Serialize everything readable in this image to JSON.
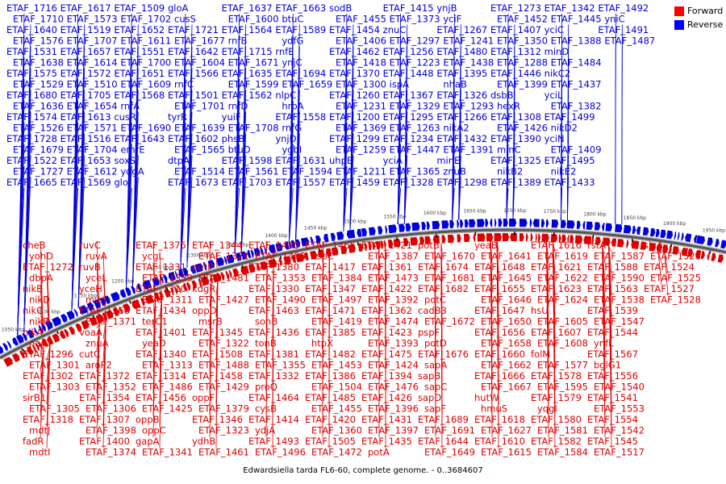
{
  "caption": "Edwardsiella tarda FL6-60, complete genome. - 0..3684607",
  "legend": [
    {
      "label": "Forward",
      "color": "#ff0000"
    },
    {
      "label": "Reverse",
      "color": "#0000ff"
    }
  ],
  "colors": {
    "forward": "#dd0000",
    "reverse": "#0000dd",
    "backbone": "#888888"
  },
  "kbp_ticks": [
    "1050 kbp",
    "1100 kbp",
    "1150 kbp",
    "1200 kbp",
    "1250 kbp",
    "1300 kbp",
    "1350 kbp",
    "1400 kbp",
    "1450 kbp",
    "1500 kbp",
    "1550 kbp",
    "1600 kbp",
    "1650 kbp",
    "1700 kbp",
    "1750 kbp",
    "1800 kbp",
    "1850 kbp",
    "1900 kbp",
    "1950 kbp"
  ],
  "reverse_labels": [
    "ETAF_1716",
    "ETAF_1710",
    "ETAF_1640",
    "ETAF_1576",
    "ETAF_1531",
    "ETAF_1638",
    "ETAF_1575",
    "ETAF_1529",
    "ETAF_1680",
    "ETAF_1636",
    "ETAF_1574",
    "ETAF_1526",
    "ETAF_1728",
    "ETAF_1679",
    "ETAF_1522",
    "ETAF_1727",
    "ETAF_1665",
    "ETAF_1617",
    "ETAF_1573",
    "ETAF_1519",
    "ETAF_1707",
    "ETAF_1657",
    "ETAF_1614",
    "ETAF_1572",
    "ETAF_1510",
    "ETAF_1705",
    "ETAF_1654",
    "ETAF_1613",
    "ETAF_1571",
    "ETAF_1516",
    "ETAF_1704",
    "ETAF_1653",
    "ETAF_1612",
    "ETAF_1569",
    "ETAF_1509",
    "ETAF_1702",
    "ETAF_1652",
    "ETAF_1611",
    "ETAF_1551",
    "ETAF_1700",
    "ETAF_1651",
    "ETAF_1609",
    "ETAF_1568",
    "rnfA",
    "cusR",
    "ETAF_1690",
    "ETAF_1643",
    "emrE",
    "soxS",
    "ydgA",
    "glo",
    "gloA",
    "cusS",
    "ETAF_1721",
    "ETAF_1677",
    "ETAF_1642",
    "ETAF_1604",
    "ETAF_1566",
    "rnfC",
    "ETAF_1501",
    "ETAF_1701",
    "tyrR",
    "ETAF_1639",
    "ETAF_1602",
    "ETAF_1565",
    "dtpA",
    "ETAF_1514",
    "ETAF_1673",
    "ETAF_1637",
    "ETAF_1600",
    "ETAF_1564",
    "rnfB",
    "ETAF_1715",
    "ETAF_1671",
    "ETAF_1635",
    "ETAF_1599",
    "ETAF_1562",
    "rnfD",
    "yuiF",
    "ETAF_1708",
    "phsB",
    "btuD",
    "ETAF_1598",
    "ETAF_1561",
    "ETAF_1703",
    "ETAF_1663",
    "btuC",
    "ETAF_1589",
    "ydfG",
    "rnfE",
    "ynjC",
    "ETAF_1694",
    "ETAF_1659",
    "nlpC",
    "hrpA",
    "ETAF_1558",
    "rnfG",
    "ynjD",
    "ygbI",
    "ETAF_1631",
    "ETAF_1594",
    "ETAF_1557",
    "sodB",
    "ETAF_1455",
    "ETAF_1454",
    "ETAF_1406",
    "ETAF_1462",
    "ETAF_1418",
    "ETAF_1370",
    "ETAF_1300",
    "ETAF_1260",
    "ETAF_1231",
    "ETAF_1200",
    "ETAF_1369",
    "ETAF_1299",
    "ETAF_1259",
    "uhpB",
    "ETAF_1211",
    "ETAF_1459",
    "ETAF_1415",
    "ETAF_1373",
    "znuC",
    "ETAF_1297",
    "ETAF_1256",
    "ETAF_1223",
    "ETAF_1448",
    "ispA",
    "ETAF_1367",
    "ETAF_1329",
    "ETAF_1295",
    "ETAF_1263",
    "ETAF_1234",
    "ETAF_1447",
    "yciA",
    "ETAF_1365",
    "ETAF_1328",
    "ynjB",
    "yciF",
    "ETAF_1267",
    "ETAF_1241",
    "ETAF_1480",
    "ETAF_1438",
    "ETAF_1395",
    "nhaB",
    "ETAF_1326",
    "ETAF_1293",
    "ETAF_1266",
    "nikA2",
    "ETAF_1432",
    "ETAF_1391",
    "minE",
    "znuB",
    "ETAF_1298",
    "ETAF_1273",
    "ETAF_1452",
    "ETAF_1407",
    "ETAF_1350",
    "ETAF_1312",
    "ETAF_1288",
    "ETAF_1446",
    "ETAF_1399",
    "dsbB",
    "hexR",
    "ETAF_1308",
    "ETAF_1426",
    "ETAF_1390",
    "minC",
    "ETAF_1325",
    "nikB2",
    "ETAF_1389",
    "ETAF_1342",
    "ETAF_1445",
    "yciC",
    "ETAF_1388",
    "minD",
    "ETAF_1484",
    "nikC2",
    "ETAF_1437",
    "yciL",
    "ETAF_1382",
    "ETAF_1499",
    "nikD2",
    "yciN",
    "ETAF_1409",
    "ETAF_1495",
    "nikE2",
    "ETAF_1433",
    "ETAF_1492",
    "yniC",
    "ETAF_1491",
    "ETAF_1487"
  ],
  "forward_labels": [
    "cheB",
    "yohD",
    "ETAF_1272",
    "dbpA",
    "nikE",
    "nikD",
    "nikC",
    "nikB",
    "nikA",
    "nanT",
    "ETAF_1296",
    "ETAF_1301",
    "ETAF_1302",
    "ETAF_1303",
    "sirB1",
    "ETAF_1305",
    "ETAF_1318",
    "mdtJ",
    "fadR",
    "mdtI",
    "ruvC",
    "ruvA",
    "ruvB",
    "yceL",
    "yceH",
    "murJ",
    "ETAF_1368",
    "ETAF_1371",
    "voaA",
    "znuA",
    "cutC",
    "aroP2",
    "ETAF_1372",
    "ETAF_1352",
    "ETAF_1354",
    "ETAF_1306",
    "ETAF_1307",
    "ETAF_1398",
    "ETAF_1400",
    "ETAF_1374",
    "ETAF_1375",
    "ycgL",
    "ETAF_1331",
    "ETAF_1339",
    "ETAF_1310",
    "ETAF_1311",
    "ETAF_1434",
    "terC1",
    "ETAF_1401",
    "yeaD",
    "ETAF_1340",
    "ETAF_1313",
    "ETAF_1314",
    "ETAF_1486",
    "ETAF_1456",
    "ETAF_1425",
    "oppB",
    "oppC",
    "gapA",
    "ETAF_1341",
    "ETAF_1344",
    "ETAF_1321",
    "putP",
    "ETAF_1481",
    "kdgR",
    "ETAF_1427",
    "oppD",
    "msrB",
    "ETAF_1345",
    "ETAF_1322",
    "ETAF_1508",
    "ETAF_1488",
    "ETAF_1458",
    "ETAF_1429",
    "oppF",
    "ETAF_1379",
    "ETAF_1346",
    "ETAF_1323",
    "ydhB",
    "ETAF_1461",
    "ETAF_1430",
    "ETAF_1408",
    "ETAF_1380",
    "ETAF_1353",
    "ETAF_1330",
    "ETAF_1490",
    "ETAF_1463",
    "sohB",
    "ETAF_1436",
    "tonB",
    "ETAF_1381",
    "ETAF_1355",
    "ETAF_1332",
    "proQ",
    "ETAF_1464",
    "cysB",
    "ETAF_1414",
    "ydjA",
    "ETAF_1493",
    "ETAF_1496",
    "ETAF_1465",
    "cspC",
    "ETAF_1417",
    "ETAF_1384",
    "ETAF_1347",
    "ETAF_1497",
    "ETAF_1471",
    "ETAF_1419",
    "ETAF_1385",
    "htpX",
    "ETAF_1482",
    "ETAF_1453",
    "ETAF_1386",
    "ETAF_1504",
    "ETAF_1485",
    "ETAF_1455",
    "ETAF_1420",
    "ETAF_1360",
    "ETAF_1505",
    "ETAF_1472",
    "ETAF_1421",
    "ETAF_1387",
    "ETAF_1361",
    "ETAF_1473",
    "ETAF_1422",
    "ETAF_1392",
    "ETAF_1362",
    "ETAF_1474",
    "ETAF_1423",
    "ETAF_1393",
    "ETAF_1475",
    "ETAF_1424",
    "ETAF_1394",
    "ETAF_1476",
    "ETAF_1426",
    "ETAF_1396",
    "ETAF_1431",
    "ETAF_1397",
    "ETAF_1435",
    "potA",
    "potB",
    "ETAF_1670",
    "ETAF_1674",
    "ETAF_1681",
    "ETAF_1682",
    "potC",
    "cadB3",
    "ETAF_1672",
    "pspF",
    "potD",
    "ETAF_1676",
    "sapA",
    "sapB",
    "sapC",
    "sapD",
    "sapF",
    "ETAF_1689",
    "ETAF_1691",
    "ETAF_1644",
    "ETAF_1649",
    "yeaB",
    "ETAF_1641",
    "ETAF_1648",
    "ETAF_1645",
    "ETAF_1655",
    "ETAF_1646",
    "ETAF_1647",
    "ETAF_1650",
    "ETAF_1656",
    "ETAF_1658",
    "ETAF_1660",
    "ETAF_1662",
    "ETAF_1666",
    "ETAF_1667",
    "hutW",
    "hmuS",
    "ETAF_1618",
    "ETAF_1627",
    "ETAF_1610",
    "ETAF_1615",
    "ETAF_1616",
    "ETAF_1619",
    "ETAF_1621",
    "ETAF_1622",
    "ETAF_1623",
    "ETAF_1624",
    "hsU",
    "ETAF_1605",
    "ETAF_1607",
    "ETAF_1608",
    "folM",
    "ETAF_1577",
    "ETAF_1578",
    "ETAF_1595",
    "ETAF_1579",
    "yqgI",
    "ETAF_1580",
    "ETAF_1581",
    "ETAF_1582",
    "ETAF_1584",
    "rstA",
    "ETAF_1587",
    "ETAF_1588",
    "ETAF_1590",
    "ETAF_1563",
    "ETAF_1538",
    "ETAF_1539",
    "ETAF_1547",
    "ETAF_1544",
    "ynfL",
    "ETAF_1567",
    "bglG1",
    "ETAF_1556",
    "ETAF_1540",
    "ETAF_1541",
    "ETAF_1553",
    "ETAF_1554",
    "ETAF_1542",
    "ETAF_1545",
    "ETAF_1517",
    "slyA",
    "ETAF_1523",
    "ETAF_1524",
    "ETAF_1525",
    "ETAF_1527",
    "ETAF_1528"
  ]
}
